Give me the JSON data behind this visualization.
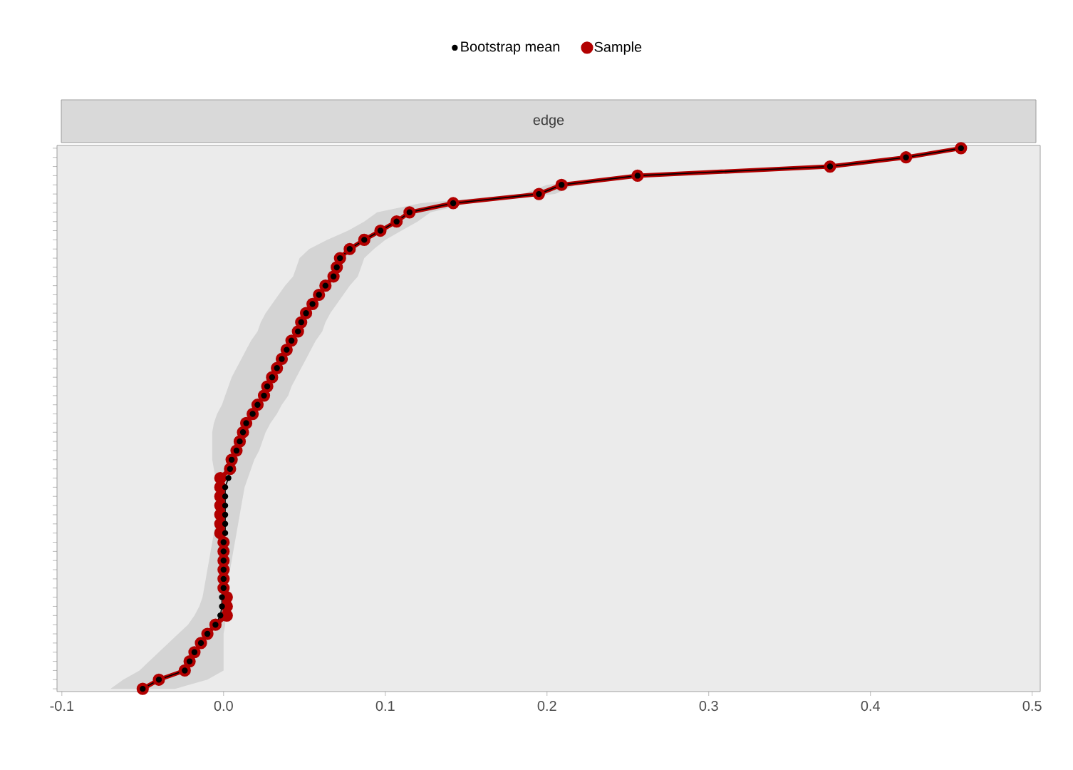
{
  "chart_data": {
    "type": "line",
    "orientation": "horizontal",
    "title": "edge",
    "categories": [
      null,
      null,
      null,
      null,
      null,
      null,
      null,
      null,
      null,
      null,
      null,
      null,
      null,
      null,
      null,
      null,
      null,
      null,
      null,
      null,
      null,
      null,
      null,
      null,
      null,
      null,
      null,
      null,
      null,
      null,
      null,
      null,
      null,
      null,
      null,
      null,
      null,
      null,
      null,
      null,
      null,
      null,
      null,
      null,
      null,
      null,
      null,
      null,
      null,
      null,
      null,
      null,
      null,
      null,
      null,
      null,
      null,
      null,
      null,
      null
    ],
    "series": [
      {
        "name": "Bootstrap mean",
        "color": "#000000",
        "values": [
          0.456,
          0.422,
          0.375,
          0.256,
          0.209,
          0.195,
          0.142,
          0.115,
          0.107,
          0.097,
          0.087,
          0.078,
          0.072,
          0.07,
          0.068,
          0.063,
          0.059,
          0.055,
          0.051,
          0.048,
          0.046,
          0.042,
          0.039,
          0.036,
          0.033,
          0.03,
          0.027,
          0.025,
          0.021,
          0.018,
          0.014,
          0.012,
          0.01,
          0.008,
          0.005,
          0.004,
          0.003,
          0.001,
          0.001,
          0.001,
          0.001,
          0.001,
          0.001,
          0.0,
          0.0,
          0.0,
          0.0,
          0.0,
          0.0,
          -0.001,
          -0.001,
          -0.002,
          -0.005,
          -0.01,
          -0.014,
          -0.018,
          -0.021,
          -0.024,
          -0.04,
          -0.05
        ],
        "lower": [
          0.451,
          0.417,
          0.37,
          0.25,
          0.2,
          0.185,
          0.122,
          0.095,
          0.087,
          0.077,
          0.064,
          0.053,
          0.047,
          0.045,
          0.043,
          0.038,
          0.034,
          0.03,
          0.026,
          0.023,
          0.021,
          0.017,
          0.014,
          0.011,
          0.008,
          0.005,
          0.003,
          0.001,
          -0.001,
          -0.004,
          -0.006,
          -0.007,
          -0.007,
          -0.007,
          -0.007,
          -0.006,
          -0.005,
          -0.005,
          -0.005,
          -0.005,
          -0.005,
          -0.005,
          -0.006,
          -0.007,
          -0.008,
          -0.009,
          -0.01,
          -0.011,
          -0.012,
          -0.013,
          -0.015,
          -0.018,
          -0.022,
          -0.028,
          -0.034,
          -0.04,
          -0.046,
          -0.052,
          -0.062,
          -0.07
        ],
        "upper": [
          0.461,
          0.428,
          0.381,
          0.262,
          0.218,
          0.205,
          0.152,
          0.128,
          0.12,
          0.11,
          0.1,
          0.093,
          0.087,
          0.085,
          0.083,
          0.078,
          0.074,
          0.07,
          0.066,
          0.063,
          0.061,
          0.057,
          0.054,
          0.051,
          0.048,
          0.045,
          0.042,
          0.04,
          0.036,
          0.033,
          0.029,
          0.026,
          0.024,
          0.022,
          0.019,
          0.017,
          0.015,
          0.013,
          0.012,
          0.011,
          0.01,
          0.009,
          0.008,
          0.007,
          0.006,
          0.005,
          0.004,
          0.003,
          0.002,
          0.001,
          0.001,
          0.001,
          0.001,
          0.0,
          0.0,
          0.0,
          0.0,
          0.0,
          -0.01,
          -0.03
        ]
      },
      {
        "name": "Sample",
        "color": "#b20000",
        "values": [
          0.456,
          0.422,
          0.375,
          0.256,
          0.209,
          0.195,
          0.142,
          0.115,
          0.107,
          0.097,
          0.087,
          0.078,
          0.072,
          0.07,
          0.068,
          0.063,
          0.059,
          0.055,
          0.051,
          0.048,
          0.046,
          0.042,
          0.039,
          0.036,
          0.033,
          0.03,
          0.027,
          0.025,
          0.021,
          0.018,
          0.014,
          0.012,
          0.01,
          0.008,
          0.005,
          0.004,
          -0.002,
          -0.002,
          -0.002,
          -0.002,
          -0.002,
          -0.002,
          -0.002,
          0.0,
          0.0,
          0.0,
          0.0,
          0.0,
          0.0,
          0.002,
          0.002,
          0.002,
          -0.005,
          -0.01,
          -0.014,
          -0.018,
          -0.021,
          -0.024,
          -0.04,
          -0.05
        ]
      }
    ],
    "xlim": [
      -0.103,
      0.505
    ],
    "xticks": [
      -0.1,
      {
        "value": 0,
        "label": "0.0"
      },
      0.1,
      0.2,
      0.3,
      0.4,
      0.5
    ],
    "marker": "circle",
    "legend": "top",
    "tick_labels": "x"
  }
}
